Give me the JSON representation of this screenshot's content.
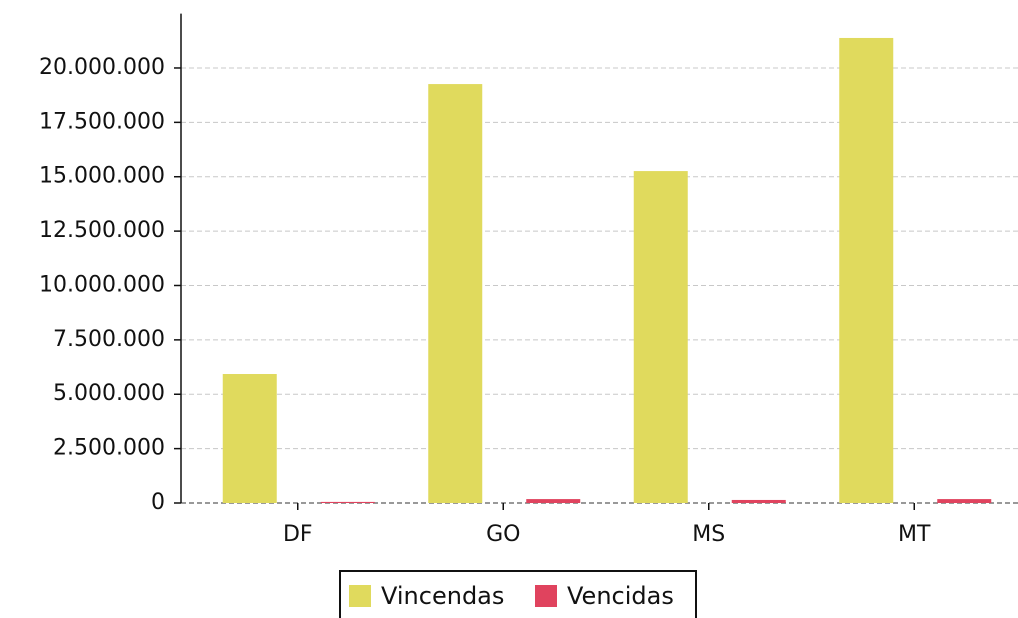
{
  "chart_data": {
    "type": "bar",
    "categories": [
      "DF",
      "GO",
      "MS",
      "MT"
    ],
    "series": [
      {
        "name": "Vincendas",
        "color": "#e0da5d",
        "values": [
          5930000,
          19260000,
          15260000,
          21380000
        ]
      },
      {
        "name": "Vencidas",
        "color": "#e0435e",
        "values": [
          50000,
          180000,
          140000,
          180000
        ]
      }
    ],
    "ylim": [
      0,
      22500000
    ],
    "yticks": [
      0,
      {
        "value": 2500000,
        "label": "2.500.000"
      },
      {
        "value": 5000000,
        "label": "5.000.000"
      },
      {
        "value": 7500000,
        "label": "7.500.000"
      },
      {
        "value": 10000000,
        "label": "10.000.000"
      },
      {
        "value": 12500000,
        "label": "12.500.000"
      },
      {
        "value": 15000000,
        "label": "15.000.000"
      },
      {
        "value": 17500000,
        "label": "17.500.000"
      },
      {
        "value": 20000000,
        "label": "20.000.000"
      }
    ],
    "grid": true,
    "legend": "bottom"
  }
}
